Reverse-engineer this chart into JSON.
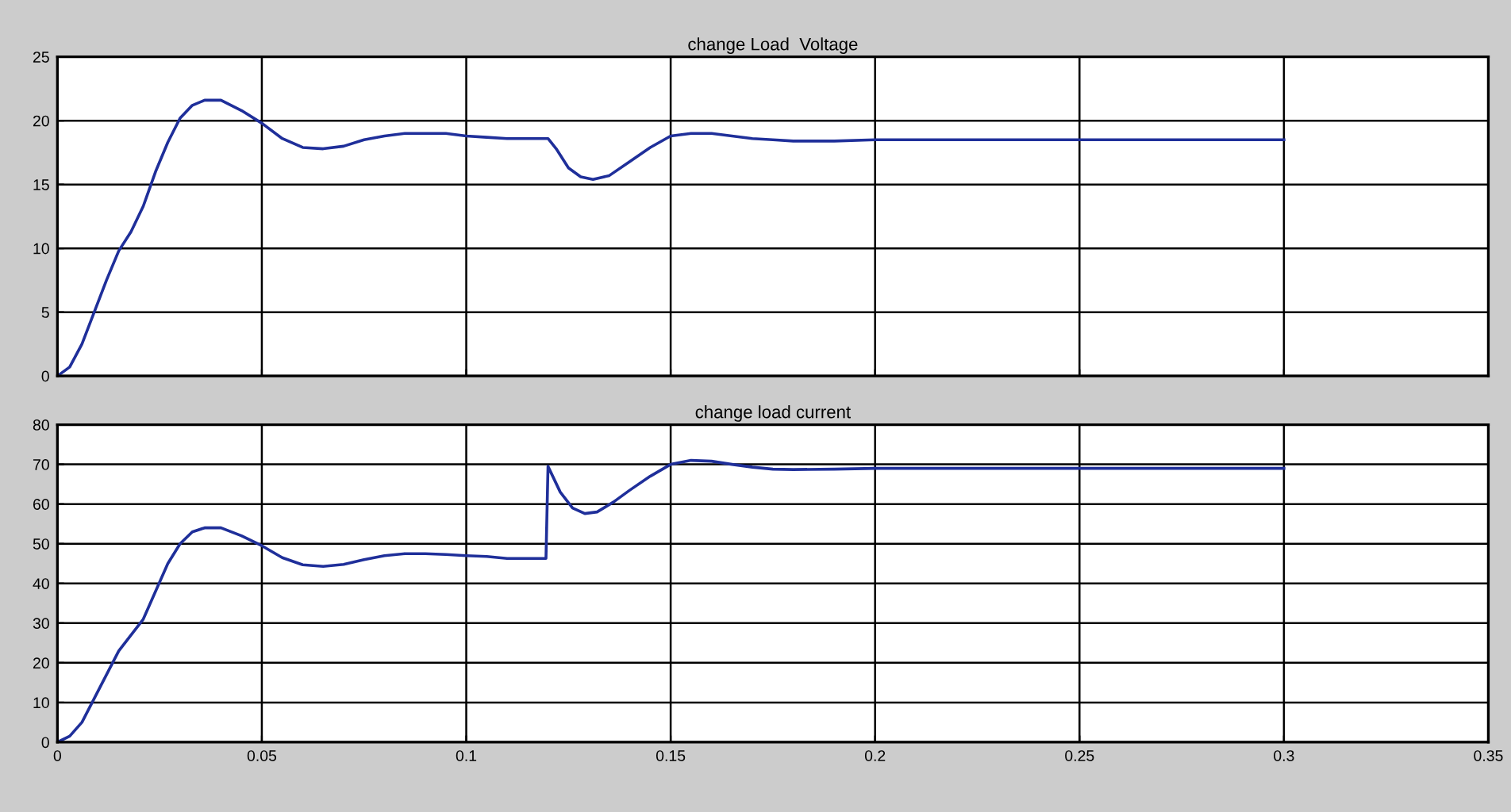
{
  "chart_data": [
    {
      "type": "line",
      "title": "change Load  Voltage",
      "x": [
        0,
        0.003,
        0.006,
        0.009,
        0.012,
        0.015,
        0.018,
        0.021,
        0.024,
        0.027,
        0.03,
        0.033,
        0.036,
        0.04,
        0.045,
        0.05,
        0.055,
        0.06,
        0.065,
        0.07,
        0.075,
        0.08,
        0.085,
        0.09,
        0.095,
        0.1,
        0.105,
        0.11,
        0.12,
        0.122,
        0.125,
        0.128,
        0.131,
        0.135,
        0.14,
        0.145,
        0.15,
        0.155,
        0.16,
        0.165,
        0.17,
        0.175,
        0.18,
        0.19,
        0.2,
        0.25,
        0.3
      ],
      "series": [
        {
          "color": "#1f2f9a",
          "values": [
            0,
            0.7,
            2.5,
            5,
            7.5,
            9.8,
            11.3,
            13.3,
            16,
            18.3,
            20.2,
            21.2,
            21.6,
            21.6,
            20.8,
            19.8,
            18.6,
            17.9,
            17.8,
            18.0,
            18.5,
            18.8,
            19.0,
            19.0,
            19.0,
            18.8,
            18.7,
            18.6,
            18.6,
            17.8,
            16.3,
            15.6,
            15.4,
            15.7,
            16.8,
            17.9,
            18.8,
            19.0,
            19.0,
            18.8,
            18.6,
            18.5,
            18.4,
            18.4,
            18.5,
            18.5,
            18.5
          ]
        }
      ],
      "xlim": [
        0,
        0.35
      ],
      "xticks": [
        0,
        0.05,
        0.1,
        0.15,
        0.2,
        0.25,
        0.3,
        0.35
      ],
      "ylim": [
        0,
        25
      ],
      "yticks": [
        0,
        5,
        10,
        15,
        20,
        25
      ],
      "grid": true,
      "tick_labels": "y"
    },
    {
      "type": "line",
      "title": "change load current",
      "x": [
        0,
        0.003,
        0.006,
        0.009,
        0.012,
        0.015,
        0.018,
        0.021,
        0.024,
        0.027,
        0.03,
        0.033,
        0.036,
        0.04,
        0.045,
        0.05,
        0.055,
        0.06,
        0.065,
        0.07,
        0.075,
        0.08,
        0.085,
        0.09,
        0.095,
        0.1,
        0.105,
        0.11,
        0.1195,
        0.12,
        0.123,
        0.126,
        0.129,
        0.132,
        0.136,
        0.14,
        0.145,
        0.15,
        0.155,
        0.16,
        0.165,
        0.17,
        0.175,
        0.18,
        0.19,
        0.2,
        0.25,
        0.3
      ],
      "series": [
        {
          "color": "#1f2f9a",
          "values": [
            0,
            1.5,
            5,
            11,
            17,
            23,
            27,
            31,
            38,
            45,
            50,
            53,
            54,
            54,
            52,
            49.5,
            46.5,
            44.7,
            44.3,
            44.8,
            46,
            47,
            47.5,
            47.5,
            47.3,
            47,
            46.8,
            46.3,
            46.3,
            69.5,
            63,
            59,
            57.6,
            58,
            60.5,
            63.5,
            67,
            70,
            71,
            70.8,
            70,
            69.3,
            68.8,
            68.7,
            68.8,
            69,
            69,
            69
          ]
        }
      ],
      "xlim": [
        0,
        0.35
      ],
      "xticks": [
        0,
        0.05,
        0.1,
        0.15,
        0.2,
        0.25,
        0.3,
        0.35
      ],
      "ylim": [
        0,
        80
      ],
      "yticks": [
        0,
        10,
        20,
        30,
        40,
        50,
        60,
        70,
        80
      ],
      "grid": true
    }
  ]
}
